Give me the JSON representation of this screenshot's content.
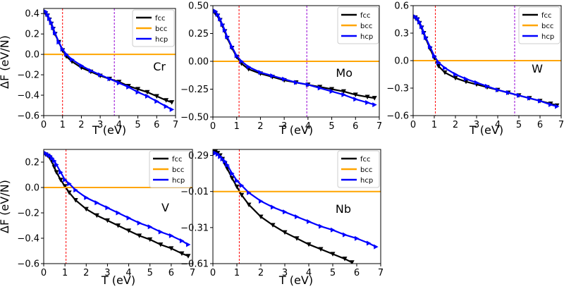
{
  "colors": {
    "fcc": "#000000",
    "bcc": "#ffa500",
    "hcp": "#0000ff",
    "vline1": "#ff0000",
    "vline2": "#9400d3"
  },
  "chart_data": [
    {
      "type": "line",
      "element": "Cr",
      "xlabel": "T (eV)",
      "ylabel": "ΔF (eV/N)",
      "xlim": [
        0,
        7
      ],
      "ylim": [
        -0.6,
        0.45
      ],
      "xticks": [
        0,
        1,
        2,
        3,
        4,
        5,
        6,
        7
      ],
      "xtick_labels": [
        "0",
        "1",
        "2",
        "3",
        "4",
        "5",
        "6",
        "7"
      ],
      "yticks": [
        0.4,
        0.2,
        0.0,
        -0.2,
        -0.4,
        -0.6
      ],
      "ytick_labels": [
        "0.4",
        "0.2",
        "0.0",
        "−0.2",
        "−0.4",
        "−0.6"
      ],
      "vlines": [
        1.0,
        3.75
      ],
      "legend": [
        "fcc",
        "bcc",
        "hcp"
      ],
      "series": [
        {
          "name": "fcc",
          "x": [
            0.1,
            0.2,
            0.3,
            0.4,
            0.5,
            0.6,
            0.8,
            1.0,
            1.2,
            1.5,
            2.0,
            2.5,
            3.0,
            3.5,
            4.0,
            4.5,
            5.0,
            5.5,
            6.0,
            6.5,
            6.8
          ],
          "y": [
            0.4,
            0.38,
            0.34,
            0.3,
            0.25,
            0.2,
            0.12,
            0.04,
            -0.02,
            -0.07,
            -0.13,
            -0.17,
            -0.21,
            -0.24,
            -0.27,
            -0.31,
            -0.34,
            -0.37,
            -0.41,
            -0.45,
            -0.47
          ]
        },
        {
          "name": "bcc",
          "x": [
            0,
            7
          ],
          "y": [
            0,
            0
          ]
        },
        {
          "name": "hcp",
          "x": [
            0.1,
            0.2,
            0.3,
            0.4,
            0.5,
            0.6,
            0.8,
            1.0,
            1.2,
            1.5,
            2.0,
            2.5,
            3.0,
            3.5,
            4.0,
            4.5,
            5.0,
            5.5,
            6.0,
            6.5,
            6.8
          ],
          "y": [
            0.42,
            0.39,
            0.35,
            0.31,
            0.26,
            0.21,
            0.12,
            0.05,
            0.0,
            -0.05,
            -0.11,
            -0.16,
            -0.2,
            -0.24,
            -0.28,
            -0.32,
            -0.37,
            -0.41,
            -0.46,
            -0.51,
            -0.54
          ]
        }
      ]
    },
    {
      "type": "line",
      "element": "Mo",
      "xlabel": "T (eV)",
      "ylabel": "",
      "xlim": [
        0,
        7
      ],
      "ylim": [
        -0.5,
        0.5
      ],
      "xticks": [
        0,
        1,
        2,
        3,
        4,
        5,
        6,
        7
      ],
      "xtick_labels": [
        "0",
        "1",
        "2",
        "3",
        "4",
        "5",
        "6",
        "7"
      ],
      "yticks": [
        0.5,
        0.25,
        0.0,
        -0.25,
        -0.5
      ],
      "ytick_labels": [
        "0.50",
        "0.25",
        "0.00",
        "−0.25",
        "−0.50"
      ],
      "vlines": [
        1.1,
        3.95
      ],
      "legend": [
        "fcc",
        "bcc",
        "hcp"
      ],
      "series": [
        {
          "name": "fcc",
          "x": [
            0.1,
            0.2,
            0.3,
            0.4,
            0.5,
            0.6,
            0.8,
            1.0,
            1.2,
            1.5,
            2.0,
            2.5,
            3.0,
            3.5,
            4.0,
            4.5,
            5.0,
            5.5,
            6.0,
            6.5,
            6.8
          ],
          "y": [
            0.43,
            0.41,
            0.37,
            0.32,
            0.27,
            0.21,
            0.12,
            0.04,
            -0.02,
            -0.07,
            -0.11,
            -0.14,
            -0.17,
            -0.19,
            -0.21,
            -0.23,
            -0.25,
            -0.27,
            -0.3,
            -0.32,
            -0.33
          ]
        },
        {
          "name": "bcc",
          "x": [
            0,
            7
          ],
          "y": [
            0,
            0
          ]
        },
        {
          "name": "hcp",
          "x": [
            0.1,
            0.2,
            0.3,
            0.4,
            0.5,
            0.6,
            0.8,
            1.0,
            1.2,
            1.5,
            2.0,
            2.5,
            3.0,
            3.5,
            4.0,
            4.5,
            5.0,
            5.5,
            6.0,
            6.5,
            6.8
          ],
          "y": [
            0.45,
            0.42,
            0.38,
            0.33,
            0.28,
            0.22,
            0.13,
            0.05,
            0.0,
            -0.05,
            -0.1,
            -0.13,
            -0.16,
            -0.19,
            -0.21,
            -0.24,
            -0.27,
            -0.3,
            -0.34,
            -0.37,
            -0.39
          ]
        }
      ]
    },
    {
      "type": "line",
      "element": "W",
      "xlabel": "T (eV)",
      "ylabel": "",
      "xlim": [
        0,
        7
      ],
      "ylim": [
        -0.6,
        0.6
      ],
      "xticks": [
        0,
        1,
        2,
        3,
        4,
        5,
        6,
        7
      ],
      "xtick_labels": [
        "0",
        "1",
        "2",
        "3",
        "4",
        "5",
        "6",
        "7"
      ],
      "yticks": [
        0.6,
        0.3,
        0.0,
        -0.3,
        -0.6
      ],
      "ytick_labels": [
        "0.6",
        "0.3",
        "0.0",
        "−0.3",
        "−0.6"
      ],
      "vlines": [
        1.05,
        4.8
      ],
      "legend": [
        "fcc",
        "bcc",
        "hcp"
      ],
      "series": [
        {
          "name": "fcc",
          "x": [
            0.1,
            0.2,
            0.3,
            0.4,
            0.5,
            0.6,
            0.8,
            1.0,
            1.2,
            1.5,
            2.0,
            2.5,
            3.0,
            3.5,
            4.0,
            4.5,
            5.0,
            5.5,
            6.0,
            6.5,
            6.8
          ],
          "y": [
            0.47,
            0.45,
            0.41,
            0.36,
            0.3,
            0.24,
            0.13,
            0.03,
            -0.06,
            -0.13,
            -0.19,
            -0.23,
            -0.26,
            -0.29,
            -0.32,
            -0.35,
            -0.38,
            -0.41,
            -0.44,
            -0.47,
            -0.49
          ]
        },
        {
          "name": "bcc",
          "x": [
            0,
            7
          ],
          "y": [
            0,
            0
          ]
        },
        {
          "name": "hcp",
          "x": [
            0.1,
            0.2,
            0.3,
            0.4,
            0.5,
            0.6,
            0.8,
            1.0,
            1.2,
            1.5,
            2.0,
            2.5,
            3.0,
            3.5,
            4.0,
            4.5,
            5.0,
            5.5,
            6.0,
            6.5,
            6.8
          ],
          "y": [
            0.48,
            0.46,
            0.42,
            0.37,
            0.31,
            0.25,
            0.15,
            0.05,
            -0.02,
            -0.08,
            -0.15,
            -0.2,
            -0.24,
            -0.28,
            -0.32,
            -0.35,
            -0.38,
            -0.41,
            -0.44,
            -0.48,
            -0.5
          ]
        }
      ]
    },
    {
      "type": "line",
      "element": "V",
      "xlabel": "T (eV)",
      "ylabel": "ΔF (eV/N)",
      "xlim": [
        0,
        7
      ],
      "ylim": [
        -0.6,
        0.3
      ],
      "xticks": [
        0,
        1,
        2,
        3,
        4,
        5,
        6,
        7
      ],
      "xtick_labels": [
        "0",
        "1",
        "2",
        "3",
        "4",
        "5",
        "6",
        "7"
      ],
      "yticks": [
        0.2,
        0.0,
        -0.2,
        -0.4,
        -0.6
      ],
      "ytick_labels": [
        "0.2",
        "0.0",
        "−0.2",
        "−0.4",
        "−0.6"
      ],
      "vlines": [
        1.05
      ],
      "legend": [
        "fcc",
        "bcc",
        "hcp"
      ],
      "series": [
        {
          "name": "fcc",
          "x": [
            0.1,
            0.2,
            0.3,
            0.4,
            0.5,
            0.6,
            0.8,
            1.0,
            1.2,
            1.5,
            2.0,
            2.5,
            3.0,
            3.5,
            4.0,
            4.5,
            5.0,
            5.5,
            6.0,
            6.5,
            6.8
          ],
          "y": [
            0.26,
            0.25,
            0.23,
            0.2,
            0.16,
            0.12,
            0.06,
            0.01,
            -0.04,
            -0.1,
            -0.17,
            -0.22,
            -0.26,
            -0.3,
            -0.34,
            -0.38,
            -0.41,
            -0.45,
            -0.48,
            -0.52,
            -0.54
          ]
        },
        {
          "name": "bcc",
          "x": [
            0,
            7
          ],
          "y": [
            0,
            0
          ]
        },
        {
          "name": "hcp",
          "x": [
            0.1,
            0.2,
            0.3,
            0.4,
            0.5,
            0.6,
            0.8,
            1.0,
            1.2,
            1.5,
            2.0,
            2.5,
            3.0,
            3.5,
            4.0,
            4.5,
            5.0,
            5.5,
            6.0,
            6.5,
            6.8
          ],
          "y": [
            0.27,
            0.26,
            0.25,
            0.23,
            0.21,
            0.18,
            0.12,
            0.06,
            0.03,
            -0.02,
            -0.08,
            -0.12,
            -0.16,
            -0.2,
            -0.24,
            -0.28,
            -0.31,
            -0.35,
            -0.38,
            -0.42,
            -0.45
          ]
        }
      ]
    },
    {
      "type": "line",
      "element": "Nb",
      "xlabel": "T (eV)",
      "ylabel": "",
      "xlim": [
        0,
        7
      ],
      "ylim": [
        -0.61,
        0.34
      ],
      "xticks": [
        0,
        1,
        2,
        3,
        4,
        5,
        6,
        7
      ],
      "xtick_labels": [
        "0",
        "1",
        "2",
        "3",
        "4",
        "5",
        "6",
        "7"
      ],
      "yticks": [
        0.29,
        -0.01,
        -0.31,
        -0.61
      ],
      "ytick_labels": [
        "0.29",
        "−0.01",
        "−0.31",
        "−0.61"
      ],
      "vlines": [
        1.1
      ],
      "legend": [
        "fcc",
        "bcc",
        "hcp"
      ],
      "series": [
        {
          "name": "fcc",
          "x": [
            0.1,
            0.2,
            0.3,
            0.4,
            0.5,
            0.6,
            0.8,
            1.0,
            1.2,
            1.5,
            2.0,
            2.5,
            3.0,
            3.5,
            4.0,
            4.5,
            5.0,
            5.5,
            5.8
          ],
          "y": [
            0.32,
            0.31,
            0.29,
            0.26,
            0.22,
            0.18,
            0.1,
            0.03,
            -0.04,
            -0.12,
            -0.22,
            -0.29,
            -0.35,
            -0.4,
            -0.45,
            -0.49,
            -0.53,
            -0.57,
            -0.6
          ]
        },
        {
          "name": "bcc",
          "x": [
            0,
            7
          ],
          "y": [
            -0.01,
            -0.01
          ]
        },
        {
          "name": "hcp",
          "x": [
            0.1,
            0.2,
            0.3,
            0.4,
            0.5,
            0.6,
            0.8,
            1.0,
            1.2,
            1.5,
            2.0,
            2.5,
            3.0,
            3.5,
            4.0,
            4.5,
            5.0,
            5.5,
            6.0,
            6.5,
            6.8
          ],
          "y": [
            0.31,
            0.3,
            0.28,
            0.26,
            0.24,
            0.21,
            0.14,
            0.08,
            0.04,
            -0.02,
            -0.09,
            -0.14,
            -0.18,
            -0.22,
            -0.26,
            -0.3,
            -0.33,
            -0.37,
            -0.4,
            -0.44,
            -0.47
          ]
        }
      ]
    }
  ]
}
